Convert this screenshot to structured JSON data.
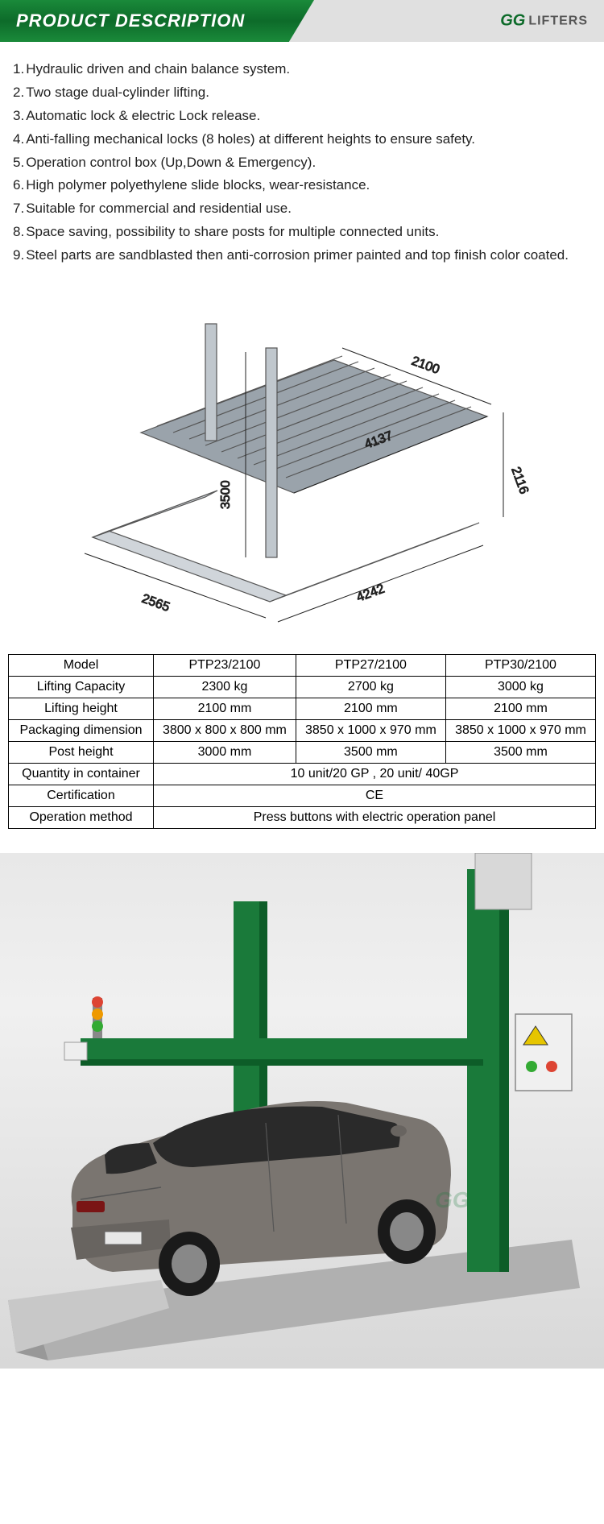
{
  "header": {
    "title": "PRODUCT DESCRIPTION",
    "logo_gg": "GG",
    "logo_text": "LIFTERS"
  },
  "description": {
    "items": [
      "Hydraulic driven and chain balance system.",
      "Two stage dual-cylinder lifting.",
      "Automatic lock & electric Lock release.",
      "Anti-falling mechanical locks (8 holes) at different heights to ensure safety.",
      "Operation control box (Up,Down & Emergency).",
      "High polymer polyethylene slide blocks, wear-resistance.",
      "Suitable for commercial and residential use.",
      "Space saving, possibility to share posts for multiple connected units.",
      "Steel parts are sandblasted then anti-corrosion primer painted and top finish color coated."
    ]
  },
  "diagram": {
    "dims": {
      "d1": "2100",
      "d2": "2116",
      "d3": "4137",
      "d4": "3500",
      "d5": "2565",
      "d6": "4242"
    },
    "platform_fill": "#a8b0b8",
    "line_color": "#6a6a6a",
    "dim_line_color": "#333333"
  },
  "spec_table": {
    "headers": [
      "Model",
      "PTP23/2100",
      "PTP27/2100",
      "PTP30/2100"
    ],
    "rows": [
      {
        "label": "Lifting Capacity",
        "cells": [
          "2300 kg",
          "2700 kg",
          "3000 kg"
        ]
      },
      {
        "label": "Lifting height",
        "cells": [
          "2100 mm",
          "2100 mm",
          "2100 mm"
        ]
      },
      {
        "label": "Packaging dimension",
        "cells": [
          "3800 x 800 x 800 mm",
          "3850 x 1000 x 970 mm",
          "3850 x 1000 x 970 mm"
        ]
      },
      {
        "label": "Post height",
        "cells": [
          "3000 mm",
          "3500 mm",
          "3500 mm"
        ]
      }
    ],
    "merged_rows": [
      {
        "label": "Quantity in container",
        "value": "10 unit/20 GP , 20 unit/ 40GP"
      },
      {
        "label": "Certification",
        "value": "CE"
      },
      {
        "label": "Operation method",
        "value": "Press buttons with electric operation panel"
      }
    ]
  },
  "photo": {
    "post_color": "#1a7a3a",
    "car_color": "#7a7570",
    "platform_color": "#b8b8b8",
    "control_box_color": "#e8e8e8"
  }
}
